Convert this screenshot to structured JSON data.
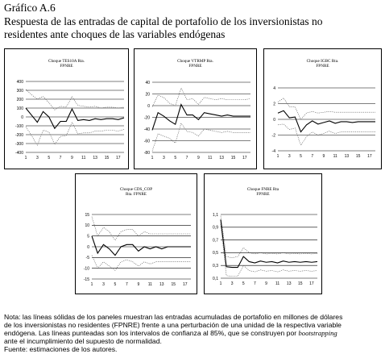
{
  "header": {
    "label": "Gráfico A.6",
    "title_line1": "Respuesta de las entradas de capital de portafolio de los inversionistas no",
    "title_line2": "residentes ante choques de las variables endógenas"
  },
  "chart_data": [
    {
      "type": "line",
      "title_line1": "Choque TES10A Rta.",
      "title_line2": "FPNRE",
      "x": [
        1,
        2,
        3,
        4,
        5,
        6,
        7,
        8,
        9,
        10,
        11,
        12,
        13,
        14,
        15,
        16,
        17,
        18
      ],
      "xticks": [
        "1",
        "3",
        "5",
        "7",
        "9",
        "11",
        "13",
        "15",
        "17"
      ],
      "yticks": [
        "400",
        "300",
        "200",
        "100",
        "0",
        "-100",
        "-200",
        "-300",
        "-400"
      ],
      "ylim": [
        -400,
        400
      ],
      "series": [
        {
          "role": "response",
          "values": [
            100,
            20,
            -60,
            60,
            0,
            -130,
            -50,
            -50,
            90,
            -40,
            -30,
            -40,
            -20,
            -30,
            -20,
            -20,
            -30,
            -10
          ]
        },
        {
          "role": "upper",
          "values": [
            310,
            250,
            200,
            230,
            160,
            80,
            120,
            110,
            230,
            130,
            120,
            110,
            120,
            100,
            110,
            110,
            100,
            110
          ]
        },
        {
          "role": "lower",
          "values": [
            -110,
            -210,
            -320,
            -150,
            -170,
            -310,
            -220,
            -210,
            -60,
            -190,
            -180,
            -180,
            -160,
            -160,
            -150,
            -150,
            -160,
            -140
          ]
        }
      ]
    },
    {
      "type": "line",
      "title_line1": "Choque VTRMP Rta.",
      "title_line2": "FPNRE",
      "x": [
        1,
        2,
        3,
        4,
        5,
        6,
        7,
        8,
        9,
        10,
        11,
        12,
        13,
        14,
        15,
        16,
        17,
        18
      ],
      "xticks": [
        "1",
        "3",
        "5",
        "7",
        "9",
        "11",
        "13",
        "15",
        "17"
      ],
      "yticks": [
        "40",
        "20",
        "0",
        "-20",
        "-40",
        "-60",
        "-80"
      ],
      "ylim": [
        -80,
        40
      ],
      "series": [
        {
          "role": "response",
          "values": [
            -42,
            -12,
            -18,
            -26,
            -32,
            2,
            -16,
            -16,
            -24,
            -12,
            -14,
            -16,
            -18,
            -16,
            -18,
            -18,
            -18,
            -18
          ]
        },
        {
          "role": "upper",
          "values": [
            -2,
            18,
            14,
            4,
            0,
            30,
            10,
            12,
            2,
            14,
            12,
            10,
            12,
            10,
            10,
            10,
            10,
            12
          ]
        },
        {
          "role": "lower",
          "values": [
            -78,
            -48,
            -52,
            -56,
            -64,
            -30,
            -44,
            -46,
            -52,
            -40,
            -42,
            -44,
            -46,
            -44,
            -46,
            -46,
            -46,
            -46
          ]
        }
      ]
    },
    {
      "type": "line",
      "title_line1": "Choque IGBC Rta.",
      "title_line2": "FPNRE",
      "x": [
        1,
        2,
        3,
        4,
        5,
        6,
        7,
        8,
        9,
        10,
        11,
        12,
        13,
        14,
        15,
        16,
        17,
        18
      ],
      "xticks": [
        "1",
        "3",
        "5",
        "7",
        "9",
        "11",
        "13",
        "15",
        "17"
      ],
      "yticks": [
        "4",
        "2",
        "0",
        "-2",
        "-4"
      ],
      "ylim": [
        -4,
        4
      ],
      "series": [
        {
          "role": "response",
          "values": [
            0.8,
            1.1,
            0.2,
            0.3,
            -1.6,
            -0.7,
            -0.2,
            -0.6,
            -0.4,
            -0.2,
            -0.5,
            -0.3,
            -0.3,
            -0.4,
            -0.3,
            -0.3,
            -0.3,
            -0.3
          ]
        },
        {
          "role": "upper",
          "values": [
            2.2,
            2.7,
            1.6,
            1.6,
            0.0,
            0.8,
            1.0,
            0.8,
            0.9,
            1.0,
            0.9,
            0.9,
            0.9,
            0.9,
            0.9,
            0.9,
            0.9,
            0.9
          ]
        },
        {
          "role": "lower",
          "values": [
            -0.7,
            -0.6,
            -1.3,
            -1.1,
            -3.3,
            -2.2,
            -1.6,
            -2.0,
            -1.8,
            -1.5,
            -1.8,
            -1.6,
            -1.6,
            -1.6,
            -1.6,
            -1.6,
            -1.6,
            -1.6
          ]
        }
      ]
    },
    {
      "type": "line",
      "title_line1": "Choque CDS_COP",
      "title_line2": "Rta. FPNRE",
      "x": [
        1,
        2,
        3,
        4,
        5,
        6,
        7,
        8,
        9,
        10,
        11,
        12,
        13,
        14,
        15,
        16,
        17,
        18
      ],
      "xticks": [
        "1",
        "3",
        "5",
        "7",
        "9",
        "11",
        "13",
        "15",
        "17"
      ],
      "yticks": [
        "15",
        "10",
        "5",
        "0",
        "-5",
        "-10",
        "-15"
      ],
      "ylim": [
        -15,
        15
      ],
      "series": [
        {
          "role": "response",
          "values": [
            5,
            -3,
            1,
            -1,
            -4,
            0,
            1,
            1,
            -2,
            0,
            -1,
            0,
            -1,
            0,
            0,
            0,
            0,
            0
          ]
        },
        {
          "role": "upper",
          "values": [
            14,
            5,
            9,
            7,
            3,
            7,
            8,
            8,
            5,
            7,
            6,
            6,
            6,
            6,
            6,
            6,
            6,
            6
          ]
        },
        {
          "role": "lower",
          "values": [
            -4,
            -10,
            -7,
            -9,
            -11,
            -7,
            -6,
            -7,
            -9,
            -7,
            -8,
            -7,
            -7,
            -7,
            -7,
            -7,
            -7,
            -7
          ]
        }
      ]
    },
    {
      "type": "line",
      "title_line1": "Choque FNRE Rta",
      "title_line2": "FPNRE",
      "x": [
        1,
        2,
        3,
        4,
        5,
        6,
        7,
        8,
        9,
        10,
        11,
        12,
        13,
        14,
        15,
        16,
        17,
        18
      ],
      "xticks": [
        "1",
        "3",
        "5",
        "7",
        "9",
        "11",
        "13",
        "15",
        "17"
      ],
      "yticks": [
        "1,1",
        "0,9",
        "0,7",
        "0,5",
        "0,3",
        "0,1"
      ],
      "ylim": [
        0.1,
        1.1
      ],
      "series": [
        {
          "role": "response",
          "values": [
            1.02,
            0.28,
            0.27,
            0.27,
            0.44,
            0.36,
            0.34,
            0.37,
            0.35,
            0.36,
            0.34,
            0.37,
            0.35,
            0.36,
            0.35,
            0.36,
            0.35,
            0.36
          ]
        },
        {
          "role": "upper",
          "values": [
            1.08,
            0.44,
            0.42,
            0.44,
            0.58,
            0.5,
            0.48,
            0.5,
            0.48,
            0.49,
            0.48,
            0.5,
            0.48,
            0.49,
            0.48,
            0.49,
            0.48,
            0.49
          ]
        },
        {
          "role": "lower",
          "values": [
            0.95,
            0.14,
            0.13,
            0.13,
            0.3,
            0.22,
            0.2,
            0.23,
            0.21,
            0.22,
            0.2,
            0.23,
            0.21,
            0.22,
            0.21,
            0.22,
            0.21,
            0.22
          ]
        }
      ]
    }
  ],
  "note": {
    "line1": "Nota: las líneas sólidas de los paneles muestran las entradas acumuladas de portafolio en millones de dólares",
    "line2": "de los inversionistas no residentes (FPNRE) frente a una perturbación de una unidad de la respectiva variable",
    "line3a": "endógena. Las líneas punteadas son los intervalos de confianza al 85%, que se construyen por ",
    "line3b": "bootstrapping",
    "line4": "ante el incumplimiento del supuesto de normalidad.",
    "source": "Fuente: estimaciones de los autores."
  },
  "colors": {
    "response": "#000000",
    "band": "#555555",
    "grid": "#000000"
  }
}
